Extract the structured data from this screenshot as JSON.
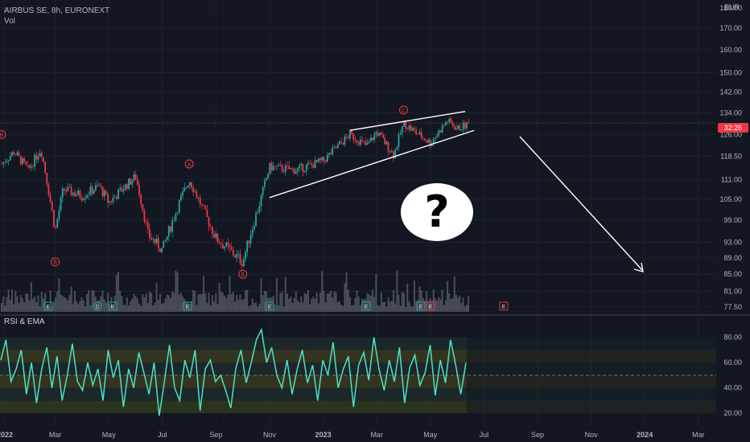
{
  "header": {
    "symbol": "AIRBUS SE, 8h, EURONEXT",
    "volume_label": "Vol",
    "currency": "EUR",
    "current_price_label": "32:26",
    "rsi_label": "RSI & EMA"
  },
  "annotation": {
    "question": "?"
  },
  "colors": {
    "up": "#26a69a",
    "down": "#f23645",
    "rsi": "#4ee0c8",
    "background": "#131722",
    "grid": "#1e222d",
    "volume": "#787b86"
  },
  "chart_data": [
    {
      "type": "candlestick",
      "title": "AIRBUS SE, 8h, EURONEXT",
      "ylabel": "EUR",
      "x_ticks": [
        "2022",
        "Mar",
        "May",
        "Jul",
        "Sep",
        "Nov",
        "2023",
        "Mar",
        "May",
        "Jul",
        "Sep",
        "Nov",
        "2024",
        "Mar"
      ],
      "y_ticks": [
        77.5,
        81.0,
        85.0,
        89.0,
        93.0,
        99.0,
        105.0,
        111.0,
        118.5,
        126.0,
        134.0,
        142.0,
        150.0,
        160.0,
        170.0,
        180.0
      ],
      "ylim": [
        77.5,
        180
      ],
      "price_path": [
        {
          "x": "2022-01",
          "y": 116
        },
        {
          "x": "2022-01-15",
          "y": 120
        },
        {
          "x": "2022-02",
          "y": 114
        },
        {
          "x": "2022-02-15",
          "y": 121
        },
        {
          "x": "2022-03",
          "y": 96
        },
        {
          "x": "2022-03-10",
          "y": 108
        },
        {
          "x": "2022-04",
          "y": 106
        },
        {
          "x": "2022-04-20",
          "y": 109
        },
        {
          "x": "2022-05",
          "y": 104
        },
        {
          "x": "2022-06",
          "y": 112
        },
        {
          "x": "2022-06-15",
          "y": 95
        },
        {
          "x": "2022-07",
          "y": 91
        },
        {
          "x": "2022-07-20",
          "y": 104
        },
        {
          "x": "2022-08",
          "y": 111
        },
        {
          "x": "2022-08-20",
          "y": 100
        },
        {
          "x": "2022-09",
          "y": 94
        },
        {
          "x": "2022-10",
          "y": 88
        },
        {
          "x": "2022-10-20",
          "y": 104
        },
        {
          "x": "2022-11",
          "y": 115
        },
        {
          "x": "2022-12",
          "y": 114
        },
        {
          "x": "2023-01",
          "y": 117
        },
        {
          "x": "2023-02",
          "y": 126
        },
        {
          "x": "2023-02-20",
          "y": 122
        },
        {
          "x": "2023-03",
          "y": 127
        },
        {
          "x": "2023-03-20",
          "y": 119
        },
        {
          "x": "2023-04",
          "y": 130
        },
        {
          "x": "2023-05",
          "y": 123
        },
        {
          "x": "2023-05-20",
          "y": 131
        },
        {
          "x": "2023-06",
          "y": 128
        },
        {
          "x": "2023-06-15",
          "y": 130
        }
      ],
      "wave_labels": [
        {
          "label": "B",
          "x": "2022-01",
          "y": 126
        },
        {
          "label": "B",
          "x": "2022-03",
          "y": 88
        },
        {
          "label": "A",
          "x": "2022-08",
          "y": 116
        },
        {
          "label": "B",
          "x": "2022-10",
          "y": 85
        },
        {
          "label": "C",
          "x": "2023-04",
          "y": 135
        }
      ],
      "event_markers": [
        "E",
        "D",
        "E",
        "E",
        "E",
        "E",
        "E",
        "E",
        "E",
        "E"
      ],
      "current_price_line": 130.2
    },
    {
      "type": "line",
      "title": "RSI & EMA",
      "y_ticks": [
        20.0,
        40.0,
        60.0,
        80.0
      ],
      "ylim": [
        15,
        90
      ],
      "bands": [
        20,
        30,
        40,
        50,
        60,
        70,
        80
      ],
      "series": [
        {
          "values": [
            62,
            78,
            45,
            55,
            70,
            35,
            60,
            28,
            55,
            72,
            40,
            65,
            30,
            50,
            75,
            45,
            38,
            60,
            42,
            55,
            30,
            70,
            48,
            62,
            25,
            55,
            40,
            68,
            52,
            35,
            60,
            18,
            45,
            74,
            40,
            30,
            62,
            48,
            70,
            22,
            55,
            62,
            45,
            50,
            38,
            24,
            56,
            70,
            44,
            60,
            78,
            86,
            60,
            72,
            50,
            40,
            62,
            35,
            55,
            70,
            44,
            58,
            30,
            62,
            50,
            76,
            40,
            55,
            65,
            25,
            58,
            68,
            46,
            80,
            55,
            38,
            62,
            45,
            72,
            28,
            56,
            66,
            42,
            52,
            74,
            34,
            62,
            44,
            78,
            58,
            35,
            60
          ]
        }
      ]
    }
  ]
}
